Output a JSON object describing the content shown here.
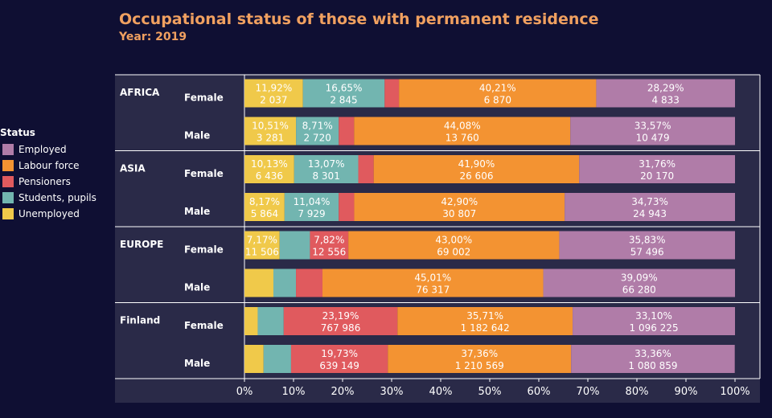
{
  "chart_data": {
    "type": "bar",
    "orientation": "horizontal",
    "stacked": "percent",
    "title": "Occupational status of those with permanent residence",
    "subtitle": "Year: 2019",
    "legend_title": "Status",
    "legend_position": "left",
    "xlim": [
      0,
      100
    ],
    "x_ticks": [
      "0%",
      "10%",
      "20%",
      "30%",
      "40%",
      "50%",
      "60%",
      "70%",
      "80%",
      "90%",
      "100%"
    ],
    "series": [
      {
        "name": "Unemployed",
        "color": "#f0c94a"
      },
      {
        "name": "Students, pupils",
        "color": "#72b5b0"
      },
      {
        "name": "Pensioners",
        "color": "#e05a5e"
      },
      {
        "name": "Labour force",
        "color": "#f39332"
      },
      {
        "name": "Employed",
        "color": "#b07ca8"
      }
    ],
    "legend_order": [
      "Employed",
      "Labour force",
      "Pensioners",
      "Students, pupils",
      "Unemployed"
    ],
    "groups": [
      {
        "name": "AFRICA",
        "rows": [
          {
            "label": "Female",
            "values": [
              11.92,
              16.65,
              2.93,
              40.21,
              28.29
            ],
            "pct_labels": [
              "11,92%",
              "16,65%",
              "",
              "40,21%",
              "28,29%"
            ],
            "count_labels": [
              "2 037",
              "2 845",
              "",
              "6 870",
              "4 833"
            ]
          },
          {
            "label": "Male",
            "values": [
              10.51,
              8.71,
              3.13,
              44.08,
              33.57
            ],
            "pct_labels": [
              "10,51%",
              "8,71%",
              "",
              "44,08%",
              "33,57%"
            ],
            "count_labels": [
              "3 281",
              "2 720",
              "",
              "13 760",
              "10 479"
            ]
          }
        ]
      },
      {
        "name": "ASIA",
        "rows": [
          {
            "label": "Female",
            "values": [
              10.13,
              13.07,
              3.14,
              41.9,
              31.76
            ],
            "pct_labels": [
              "10,13%",
              "13,07%",
              "",
              "41,90%",
              "31,76%"
            ],
            "count_labels": [
              "6 436",
              "8 301",
              "",
              "26 606",
              "20 170"
            ]
          },
          {
            "label": "Male",
            "values": [
              8.17,
              11.04,
              3.16,
              42.9,
              34.73
            ],
            "pct_labels": [
              "8,17%",
              "11,04%",
              "",
              "42,90%",
              "34,73%"
            ],
            "count_labels": [
              "5 864",
              "7 929",
              "",
              "30 807",
              "24 943"
            ]
          }
        ]
      },
      {
        "name": "EUROPE",
        "rows": [
          {
            "label": "Female",
            "values": [
              7.17,
              6.18,
              7.82,
              43.0,
              35.83
            ],
            "pct_labels": [
              "7,17%",
              "",
              "7,82%",
              "43,00%",
              "35,83%"
            ],
            "count_labels": [
              "11 506",
              "",
              "12 556",
              "69 002",
              "57 496"
            ]
          },
          {
            "label": "Male",
            "values": [
              5.9,
              4.6,
              5.4,
              45.01,
              39.09
            ],
            "pct_labels": [
              "",
              "",
              "",
              "45,01%",
              "39,09%"
            ],
            "count_labels": [
              "",
              "",
              "",
              "76 317",
              "66 280"
            ]
          }
        ]
      },
      {
        "name": "Finland",
        "rows": [
          {
            "label": "Female",
            "values": [
              2.7,
              5.3,
              23.19,
              35.71,
              33.1
            ],
            "pct_labels": [
              "",
              "",
              "23,19%",
              "35,71%",
              "33,10%"
            ],
            "count_labels": [
              "",
              "",
              "767 986",
              "1 182 642",
              "1 096 225"
            ]
          },
          {
            "label": "Male",
            "values": [
              3.9,
              5.6,
              19.73,
              37.36,
              33.36
            ],
            "pct_labels": [
              "",
              "",
              "19,73%",
              "37,36%",
              "33,36%"
            ],
            "count_labels": [
              "",
              "",
              "639 149",
              "1 210 569",
              "1 080 859"
            ]
          }
        ]
      }
    ]
  }
}
